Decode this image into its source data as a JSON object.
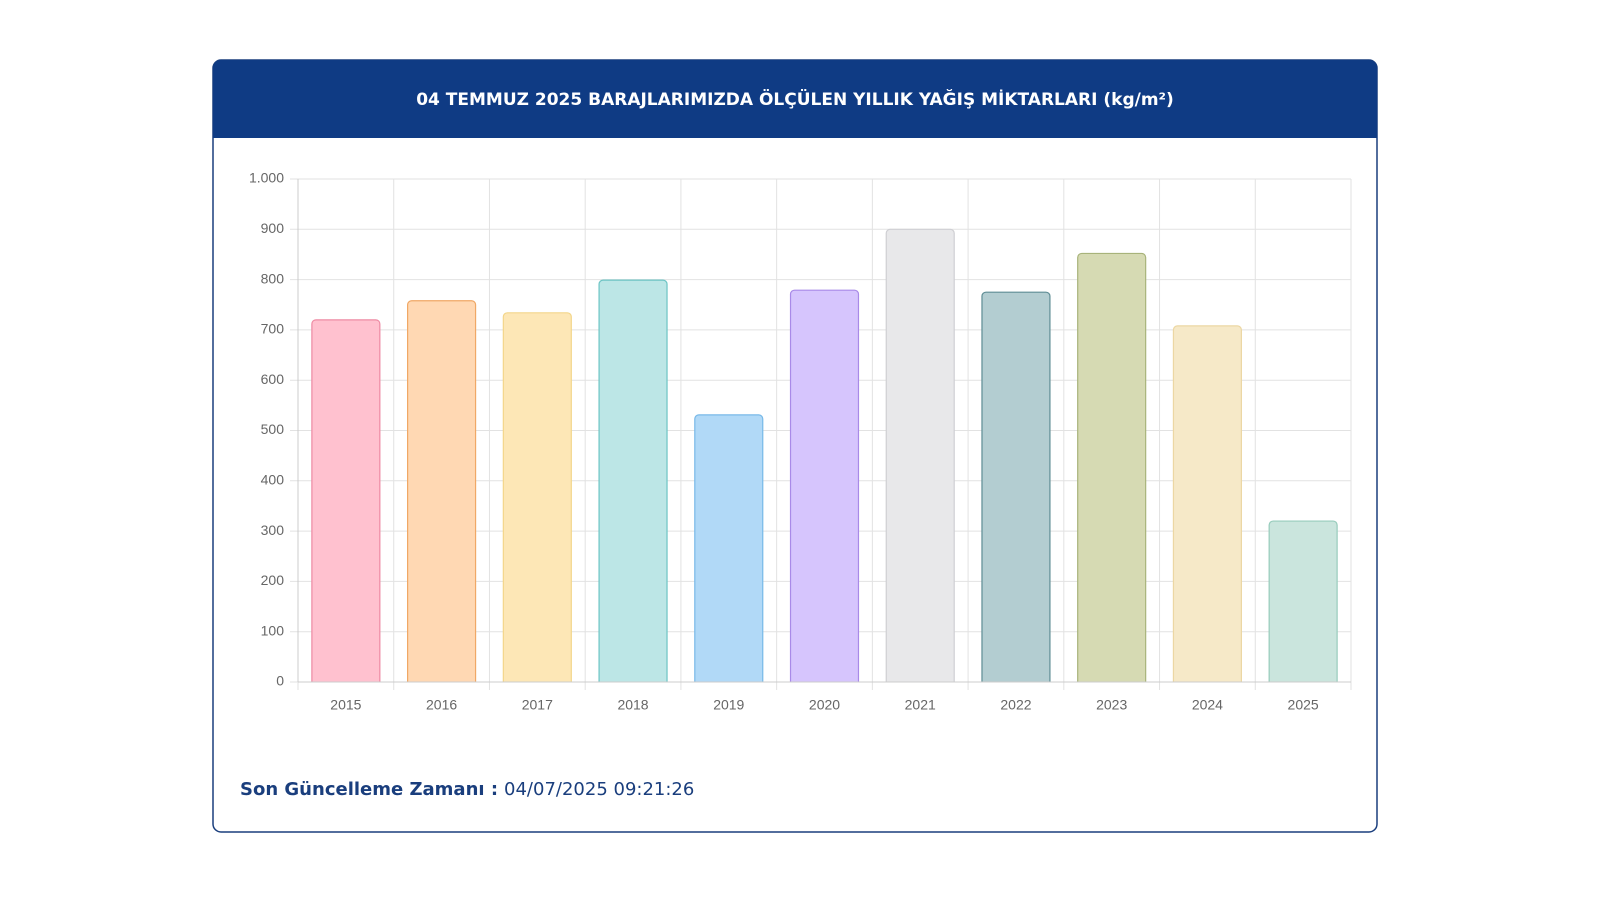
{
  "chart_data": {
    "type": "bar",
    "title": "04 TEMMUZ 2025 BARAJLARIMIZDA ÖLÇÜLEN YILLIK YAĞIŞ MİKTARLARI (kg/m²)",
    "categories": [
      "2015",
      "2016",
      "2017",
      "2018",
      "2019",
      "2020",
      "2021",
      "2022",
      "2023",
      "2024",
      "2025"
    ],
    "values": [
      720,
      758,
      734,
      799,
      531,
      779,
      900,
      775,
      852,
      708,
      320
    ],
    "colors": [
      "#ffc1cf",
      "#ffd8b3",
      "#fde7b6",
      "#bce6e6",
      "#b1d9f7",
      "#d6c5fd",
      "#e8e8ea",
      "#b3cdd1",
      "#d6dab3",
      "#f6e9c8",
      "#cae5dd"
    ],
    "border_colors": [
      "#ee8aa3",
      "#f0a866",
      "#f3d68a",
      "#6cc4c4",
      "#78b9e8",
      "#a98ae8",
      "#cfcfd3",
      "#5f8d95",
      "#a8b37a",
      "#ecd7a3",
      "#97ccbc"
    ],
    "ylim": [
      0,
      1000
    ],
    "yticks": [
      0,
      100,
      200,
      300,
      400,
      500,
      600,
      700,
      800,
      900,
      {
        "value": 1000,
        "label": "1.000"
      }
    ],
    "grid": true
  },
  "footer": {
    "label": "Son Güncelleme Zamanı :",
    "value": "04/07/2025 09:21:26"
  }
}
